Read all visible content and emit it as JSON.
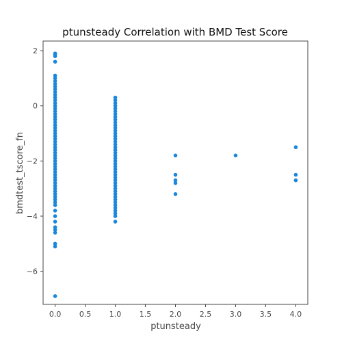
{
  "chart_data": {
    "type": "scatter",
    "title": "ptunsteady Correlation with BMD Test Score",
    "xlabel": "ptunsteady",
    "ylabel": "bmdtest_tscore_fn",
    "xlim": [
      -0.2,
      4.2
    ],
    "ylim": [
      -7.2,
      2.35
    ],
    "xticks": [
      0.0,
      0.5,
      1.0,
      1.5,
      2.0,
      2.5,
      3.0,
      3.5,
      4.0
    ],
    "xtick_labels": [
      "0.0",
      "0.5",
      "1.0",
      "1.5",
      "2.0",
      "2.5",
      "3.0",
      "3.5",
      "4.0"
    ],
    "yticks": [
      2,
      0,
      -2,
      -4,
      -6
    ],
    "ytick_labels": [
      "2",
      "0",
      "−2",
      "−4",
      "−6"
    ],
    "grid": false,
    "color": "#1a86dc",
    "x0_range": [
      -3.6,
      1.1
    ],
    "x0_extra": [
      1.9,
      1.85,
      1.8,
      1.6,
      -3.8,
      -4.0,
      -4.2,
      -4.4,
      -4.5,
      -4.6,
      -5.0,
      -5.1,
      -6.9
    ],
    "x1_range": [
      -4.0,
      0.3
    ],
    "x1_extra": [
      -4.2
    ],
    "points": [
      {
        "x": 2,
        "y": -1.8
      },
      {
        "x": 2,
        "y": -2.5
      },
      {
        "x": 2,
        "y": -2.7
      },
      {
        "x": 2,
        "y": -2.8
      },
      {
        "x": 2,
        "y": -3.2
      },
      {
        "x": 3,
        "y": -1.8
      },
      {
        "x": 4,
        "y": -1.5
      },
      {
        "x": 4,
        "y": -2.5
      },
      {
        "x": 4,
        "y": -2.7
      }
    ]
  }
}
